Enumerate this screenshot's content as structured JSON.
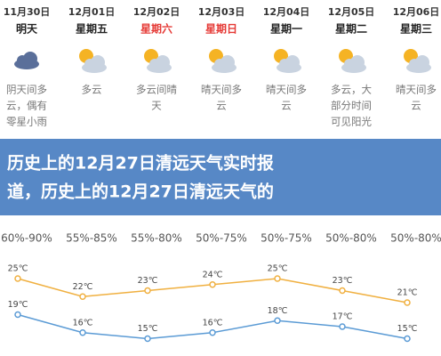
{
  "days": [
    {
      "date": "11月30日",
      "weekday": "明天",
      "weekday_color": "#222",
      "desc": [
        "阴天间多",
        "云，偶有",
        "零星小雨"
      ],
      "humidity": "60%-90%",
      "high": 25,
      "high_label": "25℃",
      "low": 19,
      "low_label": "19℃"
    },
    {
      "date": "12月01日",
      "weekday": "星期五",
      "weekday_color": "#222",
      "desc": [
        "多云"
      ],
      "humidity": "55%-85%",
      "high": 22,
      "high_label": "22℃",
      "low": 16,
      "low_label": "16℃"
    },
    {
      "date": "12月02日",
      "weekday": "星期六",
      "weekday_color": "#e53935",
      "desc": [
        "多云间晴",
        "天"
      ],
      "humidity": "55%-80%",
      "high": 23,
      "high_label": "23℃",
      "low": 15,
      "low_label": "15℃"
    },
    {
      "date": "12月03日",
      "weekday": "星期日",
      "weekday_color": "#e53935",
      "desc": [
        "晴天间多",
        "云"
      ],
      "humidity": "50%-75%",
      "high": 24,
      "high_label": "24℃",
      "low": 16,
      "low_label": "16℃"
    },
    {
      "date": "12月04日",
      "weekday": "星期一",
      "weekday_color": "#222",
      "desc": [
        "晴天间多",
        "云"
      ],
      "humidity": "50%-75%",
      "high": 25,
      "high_label": "25℃",
      "low": 18,
      "low_label": "18℃"
    },
    {
      "date": "12月05日",
      "weekday": "星期二",
      "weekday_color": "#222",
      "desc": [
        "多云，大",
        "部分时间",
        "可见阳光"
      ],
      "humidity": "50%-80%",
      "high": 23,
      "high_label": "23℃",
      "low": 17,
      "low_label": "17℃"
    },
    {
      "date": "12月06日",
      "weekday": "星期三",
      "weekday_color": "#222",
      "desc": [
        "晴天间多",
        "云"
      ],
      "humidity": "50%-80%",
      "high": 21,
      "high_label": "21℃",
      "low": 15,
      "low_label": "15℃"
    }
  ],
  "title": [
    "历史上的12月27日清远天气实时报",
    "道，历史上的12月27日清远天气的"
  ],
  "high_color": "#f0b040",
  "low_color": "#5b9bd5"
}
